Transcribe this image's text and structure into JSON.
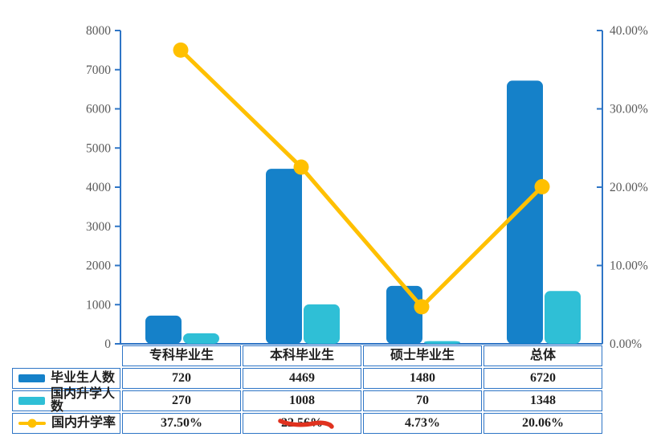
{
  "colors": {
    "axis_blue": "#2E75C6",
    "bar_graduates": "#1581C9",
    "bar_further_study": "#2FBFD6",
    "line_rate": "#FFC000",
    "table_border": "#2E75C6",
    "tick_label_gray": "#595959",
    "table_text": "#1F1F1F",
    "annotation_red": "#E0321F"
  },
  "chart_data": {
    "type": "combo",
    "categories": [
      "专科毕业生",
      "本科毕业生",
      "硕士毕业生",
      "总体"
    ],
    "series": [
      {
        "name": "毕业生人数",
        "key": "graduates",
        "type": "bar",
        "axis": "left",
        "color": "#1581C9",
        "values": [
          720,
          4469,
          1480,
          6720
        ]
      },
      {
        "name": "国内升学人数",
        "key": "domestic-further-study",
        "type": "bar",
        "axis": "left",
        "color": "#2FBFD6",
        "values": [
          270,
          1008,
          70,
          1348
        ]
      },
      {
        "name": "国内升学率",
        "key": "domestic-further-study-rate",
        "type": "line",
        "axis": "right",
        "color": "#FFC000",
        "values": [
          37.5,
          22.56,
          4.73,
          20.06
        ]
      }
    ],
    "left_axis": {
      "min": 0,
      "max": 8000,
      "step": 1000,
      "ticks": [
        "0",
        "1000",
        "2000",
        "3000",
        "4000",
        "5000",
        "6000",
        "7000",
        "8000"
      ]
    },
    "right_axis": {
      "min": 0,
      "max": 40,
      "step": 10,
      "ticks": [
        "0.00%",
        "10.00%",
        "20.00%",
        "30.00%",
        "40.00%"
      ]
    },
    "grid": false,
    "legend_position": "table-left"
  },
  "table": {
    "header": [
      "专科毕业生",
      "本科毕业生",
      "硕士毕业生",
      "总体"
    ],
    "rows": [
      {
        "label": "毕业生人数",
        "swatch": "bar-blue",
        "values": [
          "720",
          "4469",
          "1480",
          "6720"
        ]
      },
      {
        "label": "国内升学人数",
        "swatch": "bar-teal",
        "values": [
          "270",
          "1008",
          "70",
          "1348"
        ]
      },
      {
        "label": "国内升学率",
        "swatch": "line-yellow",
        "values": [
          "37.50%",
          "22.56%",
          "4.73%",
          "20.06%"
        ]
      }
    ],
    "annotation": {
      "type": "hand-drawn-underline",
      "target_cell": "22.56%",
      "color": "#E0321F"
    }
  }
}
